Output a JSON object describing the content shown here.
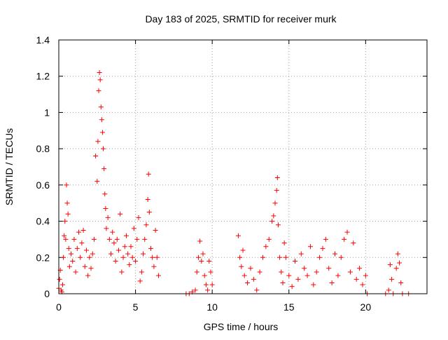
{
  "chart_data": {
    "type": "scatter",
    "title": "Day 183 of 2025, SRMTID for receiver murk",
    "xlabel": "GPS time / hours",
    "ylabel": "SRMTID / TECUs",
    "xlim": [
      0,
      24
    ],
    "ylim": [
      0,
      1.4
    ],
    "xticks": [
      0,
      5,
      10,
      15,
      20
    ],
    "yticks": [
      0,
      0.2,
      0.4,
      0.6,
      0.8,
      1,
      1.2,
      1.4
    ],
    "xtick_labels": [
      "0",
      "5",
      "10",
      "15",
      "20"
    ],
    "ytick_labels": [
      "0",
      "0.2",
      "0.4",
      "0.6",
      "0.8",
      "1",
      "1.2",
      "1.4"
    ],
    "grid": true,
    "marker": "+",
    "color": "#ff0000",
    "series": [
      {
        "name": "SRMTID",
        "points": [
          [
            0.0,
            0.03
          ],
          [
            0.05,
            0.08
          ],
          [
            0.1,
            0.13
          ],
          [
            0.15,
            0.02
          ],
          [
            0.2,
            0.01
          ],
          [
            0.25,
            0.05
          ],
          [
            0.3,
            0.2
          ],
          [
            0.35,
            0.32
          ],
          [
            0.4,
            0.4
          ],
          [
            0.45,
            0.3
          ],
          [
            0.5,
            0.6
          ],
          [
            0.55,
            0.5
          ],
          [
            0.6,
            0.44
          ],
          [
            0.65,
            0.25
          ],
          [
            0.7,
            0.15
          ],
          [
            0.8,
            0.22
          ],
          [
            0.9,
            0.18
          ],
          [
            1.0,
            0.3
          ],
          [
            1.1,
            0.12
          ],
          [
            1.2,
            0.25
          ],
          [
            1.3,
            0.34
          ],
          [
            1.4,
            0.2
          ],
          [
            1.5,
            0.28
          ],
          [
            1.6,
            0.35
          ],
          [
            1.7,
            0.15
          ],
          [
            1.8,
            0.24
          ],
          [
            1.9,
            0.1
          ],
          [
            2.0,
            0.2
          ],
          [
            2.1,
            0.14
          ],
          [
            2.2,
            0.22
          ],
          [
            2.3,
            0.3
          ],
          [
            2.4,
            0.76
          ],
          [
            2.5,
            0.62
          ],
          [
            2.55,
            0.84
          ],
          [
            2.6,
            1.12
          ],
          [
            2.65,
            1.22
          ],
          [
            2.7,
            1.18
          ],
          [
            2.75,
            1.03
          ],
          [
            2.8,
            0.96
          ],
          [
            2.85,
            0.89
          ],
          [
            2.9,
            0.8
          ],
          [
            2.95,
            0.69
          ],
          [
            3.0,
            0.55
          ],
          [
            3.05,
            0.47
          ],
          [
            3.1,
            0.36
          ],
          [
            3.2,
            0.42
          ],
          [
            3.3,
            0.3
          ],
          [
            3.4,
            0.22
          ],
          [
            3.5,
            0.34
          ],
          [
            3.6,
            0.28
          ],
          [
            3.7,
            0.18
          ],
          [
            3.8,
            0.3
          ],
          [
            3.9,
            0.24
          ],
          [
            4.0,
            0.44
          ],
          [
            4.1,
            0.12
          ],
          [
            4.2,
            0.2
          ],
          [
            4.3,
            0.26
          ],
          [
            4.4,
            0.32
          ],
          [
            4.5,
            0.22
          ],
          [
            4.6,
            0.16
          ],
          [
            4.7,
            0.26
          ],
          [
            4.8,
            0.2
          ],
          [
            4.9,
            0.36
          ],
          [
            5.0,
            0.18
          ],
          [
            5.1,
            0.3
          ],
          [
            5.2,
            0.42
          ],
          [
            5.3,
            0.07
          ],
          [
            5.4,
            0.12
          ],
          [
            5.5,
            0.22
          ],
          [
            5.6,
            0.3
          ],
          [
            5.7,
            0.38
          ],
          [
            5.8,
            0.52
          ],
          [
            5.85,
            0.66
          ],
          [
            5.9,
            0.45
          ],
          [
            6.0,
            0.25
          ],
          [
            6.1,
            0.2
          ],
          [
            6.2,
            0.15
          ],
          [
            6.3,
            0.35
          ],
          [
            6.4,
            0.2
          ],
          [
            6.5,
            0.1
          ],
          [
            8.3,
            0.0
          ],
          [
            8.5,
            0.0
          ],
          [
            8.7,
            0.01
          ],
          [
            8.9,
            0.02
          ],
          [
            9.0,
            0.12
          ],
          [
            9.1,
            0.2
          ],
          [
            9.2,
            0.29
          ],
          [
            9.3,
            0.18
          ],
          [
            9.4,
            0.22
          ],
          [
            9.5,
            0.1
          ],
          [
            9.6,
            0.05
          ],
          [
            9.7,
            0.02
          ],
          [
            9.8,
            0.18
          ],
          [
            9.9,
            0.12
          ],
          [
            10.0,
            0.05
          ],
          [
            11.7,
            0.32
          ],
          [
            11.8,
            0.2
          ],
          [
            11.9,
            0.15
          ],
          [
            12.0,
            0.24
          ],
          [
            12.1,
            0.1
          ],
          [
            12.3,
            0.06
          ],
          [
            12.5,
            0.14
          ],
          [
            12.7,
            0.08
          ],
          [
            12.9,
            0.02
          ],
          [
            13.1,
            0.12
          ],
          [
            13.3,
            0.2
          ],
          [
            13.5,
            0.26
          ],
          [
            13.7,
            0.3
          ],
          [
            13.9,
            0.4
          ],
          [
            14.0,
            0.43
          ],
          [
            14.1,
            0.5
          ],
          [
            14.2,
            0.57
          ],
          [
            14.25,
            0.64
          ],
          [
            14.3,
            0.38
          ],
          [
            14.4,
            0.2
          ],
          [
            14.5,
            0.12
          ],
          [
            14.6,
            0.06
          ],
          [
            14.7,
            0.28
          ],
          [
            14.8,
            0.2
          ],
          [
            15.0,
            0.1
          ],
          [
            15.2,
            0.04
          ],
          [
            15.4,
            0.18
          ],
          [
            15.6,
            0.08
          ],
          [
            15.8,
            0.22
          ],
          [
            16.0,
            0.14
          ],
          [
            16.2,
            0.1
          ],
          [
            16.4,
            0.26
          ],
          [
            16.6,
            0.05
          ],
          [
            16.8,
            0.12
          ],
          [
            17.0,
            0.2
          ],
          [
            17.2,
            0.25
          ],
          [
            17.4,
            0.3
          ],
          [
            17.6,
            0.14
          ],
          [
            17.8,
            0.06
          ],
          [
            18.0,
            0.22
          ],
          [
            18.2,
            0.1
          ],
          [
            18.4,
            0.2
          ],
          [
            18.6,
            0.3
          ],
          [
            18.8,
            0.34
          ],
          [
            19.0,
            0.12
          ],
          [
            19.2,
            0.28
          ],
          [
            19.4,
            0.08
          ],
          [
            19.6,
            0.14
          ],
          [
            19.8,
            0.05
          ],
          [
            20.0,
            0.1
          ],
          [
            20.1,
            0.0
          ],
          [
            21.3,
            0.0
          ],
          [
            21.5,
            0.02
          ],
          [
            21.6,
            0.16
          ],
          [
            21.7,
            0.08
          ],
          [
            21.8,
            0.0
          ],
          [
            22.0,
            0.14
          ],
          [
            22.1,
            0.22
          ],
          [
            22.2,
            0.17
          ],
          [
            22.3,
            0.06
          ],
          [
            22.4,
            0.0
          ],
          [
            22.8,
            0.0
          ]
        ]
      }
    ]
  }
}
